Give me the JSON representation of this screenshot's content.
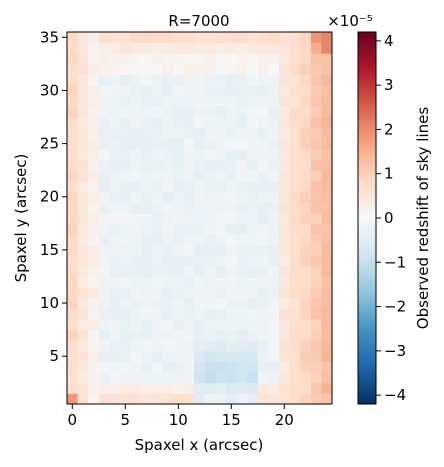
{
  "chart_data": {
    "type": "heatmap",
    "title": "R=7000",
    "xlabel": "Spaxel x (arcsec)",
    "ylabel": "Spaxel y (arcsec)",
    "colorbar_label": "Observed redshift of sky lines",
    "colorbar_exponent": "×10⁻⁵",
    "colormap": "RdBu_r",
    "xlim": [
      -0.5,
      24.5
    ],
    "ylim": [
      0.5,
      35.5
    ],
    "clim": [
      -4.2,
      4.2
    ],
    "x_ticks": [
      0,
      5,
      10,
      15,
      20
    ],
    "y_ticks": [
      5,
      10,
      15,
      20,
      25,
      30,
      35
    ],
    "colorbar_ticks": [
      -4,
      -3,
      -2,
      -1,
      0,
      1,
      2,
      3,
      4
    ],
    "x_tick_labels": [
      "0",
      "5",
      "10",
      "15",
      "20"
    ],
    "y_tick_labels": [
      "5",
      "10",
      "15",
      "20",
      "25",
      "30",
      "35"
    ],
    "colorbar_tick_labels": [
      "−4",
      "−3",
      "−2",
      "−1",
      "0",
      "1",
      "2",
      "3",
      "4"
    ],
    "grid": false,
    "nx": 25,
    "ny": 35,
    "value_description_rows_bottom_to_top_note": "values in units of 1e-5; edge columns ~+1, center ~-0.3",
    "sample_profile": {
      "x_edge_left_value": 0.8,
      "x_edge_right_value": 1.1,
      "center_value": -0.25,
      "bottom_center_min": -1.3,
      "top_right_corner_max": 2.1
    }
  }
}
